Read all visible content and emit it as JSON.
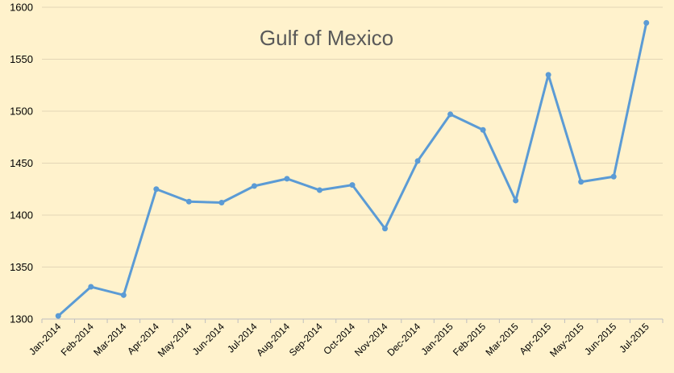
{
  "chart_data": {
    "type": "line",
    "title": "Gulf of Mexico",
    "xlabel": "",
    "ylabel": "",
    "ylim": [
      1300,
      1600
    ],
    "yticks": [
      1300,
      1350,
      1400,
      1450,
      1500,
      1550,
      1600
    ],
    "grid": true,
    "legend": "none",
    "categories": [
      "Jan-2014",
      "Feb-2014",
      "Mar-2014",
      "Apr-2014",
      "May-2014",
      "Jun-2014",
      "Jul-2014",
      "Aug-2014",
      "Sep-2014",
      "Oct-2014",
      "Nov-2014",
      "Dec-2014",
      "Jan-2015",
      "Feb-2015",
      "Mar-2015",
      "Apr-2015",
      "May-2015",
      "Jun-2015",
      "Jul-2015"
    ],
    "series": [
      {
        "color": "#5b9bd5",
        "values": [
          1303,
          1331,
          1323,
          1425,
          1413,
          1412,
          1428,
          1435,
          1424,
          1429,
          1387,
          1452,
          1497,
          1482,
          1414,
          1535,
          1432,
          1437,
          1585
        ]
      }
    ]
  }
}
